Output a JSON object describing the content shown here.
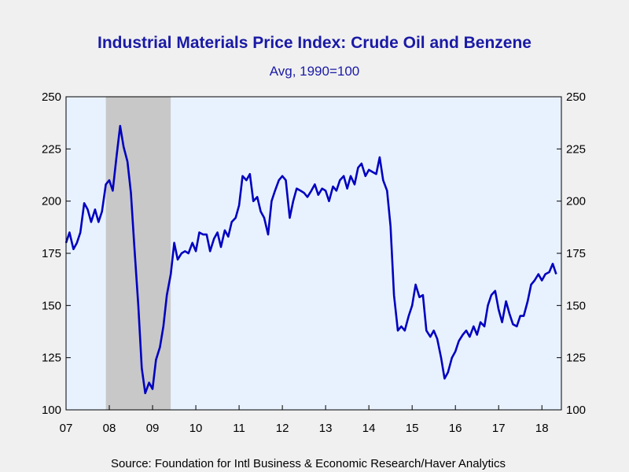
{
  "chart_data": {
    "type": "line",
    "title": "Industrial Materials Price Index: Crude Oil and Benzene",
    "subtitle": "Avg, 1990=100",
    "source": "Source:  Foundation for Intl Business & Economic Research/Haver Analytics",
    "xlabel": "",
    "ylabel": "",
    "x_range": [
      2007.0,
      2018.45
    ],
    "ylim": [
      100,
      250
    ],
    "y_ticks": [
      100,
      125,
      150,
      175,
      200,
      225,
      250
    ],
    "x_ticks": [
      {
        "label": "07",
        "x": 2007.0
      },
      {
        "label": "08",
        "x": 2008.0
      },
      {
        "label": "09",
        "x": 2009.0
      },
      {
        "label": "10",
        "x": 2010.0
      },
      {
        "label": "11",
        "x": 2011.0
      },
      {
        "label": "12",
        "x": 2012.0
      },
      {
        "label": "13",
        "x": 2013.0
      },
      {
        "label": "14",
        "x": 2014.0
      },
      {
        "label": "15",
        "x": 2015.0
      },
      {
        "label": "16",
        "x": 2016.0
      },
      {
        "label": "17",
        "x": 2017.0
      },
      {
        "label": "18",
        "x": 2018.0
      }
    ],
    "recession_shading": [
      {
        "start": 2007.92,
        "end": 2009.42
      }
    ],
    "colors": {
      "line": "#0000c0",
      "plot_background": "#e8f2ff",
      "recession": "#c8c8c8",
      "title": "#1a1aa6",
      "page_background": "#f0f0f0"
    },
    "grid": false,
    "legend": "none",
    "series": [
      {
        "x": [
          2007.0,
          2007.08,
          2007.17,
          2007.25,
          2007.33,
          2007.42,
          2007.5,
          2007.58,
          2007.67,
          2007.75,
          2007.83,
          2007.92,
          2008.0,
          2008.08,
          2008.17,
          2008.25,
          2008.33,
          2008.42,
          2008.5,
          2008.58,
          2008.67,
          2008.75,
          2008.83,
          2008.92,
          2009.0,
          2009.08,
          2009.17,
          2009.25,
          2009.33,
          2009.42,
          2009.5,
          2009.58,
          2009.67,
          2009.75,
          2009.83,
          2009.92,
          2010.0,
          2010.08,
          2010.17,
          2010.25,
          2010.33,
          2010.42,
          2010.5,
          2010.58,
          2010.67,
          2010.75,
          2010.83,
          2010.92,
          2011.0,
          2011.08,
          2011.17,
          2011.25,
          2011.33,
          2011.42,
          2011.5,
          2011.58,
          2011.67,
          2011.75,
          2011.83,
          2011.92,
          2012.0,
          2012.08,
          2012.17,
          2012.25,
          2012.33,
          2012.42,
          2012.5,
          2012.58,
          2012.67,
          2012.75,
          2012.83,
          2012.92,
          2013.0,
          2013.08,
          2013.17,
          2013.25,
          2013.33,
          2013.42,
          2013.5,
          2013.58,
          2013.67,
          2013.75,
          2013.83,
          2013.92,
          2014.0,
          2014.08,
          2014.17,
          2014.25,
          2014.33,
          2014.42,
          2014.5,
          2014.58,
          2014.67,
          2014.75,
          2014.83,
          2014.92,
          2015.0,
          2015.08,
          2015.17,
          2015.25,
          2015.33,
          2015.42,
          2015.5,
          2015.58,
          2015.67,
          2015.75,
          2015.83,
          2015.92,
          2016.0,
          2016.08,
          2016.17,
          2016.25,
          2016.33,
          2016.42,
          2016.5,
          2016.58,
          2016.67,
          2016.75,
          2016.83,
          2016.92,
          2017.0,
          2017.08,
          2017.17,
          2017.25,
          2017.33,
          2017.42,
          2017.5,
          2017.58,
          2017.67,
          2017.75,
          2017.83,
          2017.92,
          2018.0,
          2018.08,
          2018.17,
          2018.25,
          2018.33
        ],
        "values": [
          180,
          185,
          177,
          180,
          185,
          199,
          196,
          190,
          196,
          190,
          195,
          208,
          210,
          205,
          222,
          236,
          226,
          219,
          204,
          178,
          150,
          120,
          108,
          113,
          110,
          124,
          130,
          140,
          155,
          165,
          180,
          172,
          175,
          176,
          175,
          180,
          176,
          185,
          184,
          184,
          176,
          182,
          185,
          178,
          186,
          183,
          190,
          192,
          198,
          212,
          210,
          213,
          200,
          202,
          195,
          192,
          184,
          200,
          205,
          210,
          212,
          210,
          192,
          200,
          206,
          205,
          204,
          202,
          205,
          208,
          203,
          206,
          205,
          200,
          207,
          205,
          210,
          212,
          206,
          212,
          208,
          216,
          218,
          212,
          215,
          214,
          213,
          221,
          210,
          205,
          188,
          155,
          138,
          140,
          138,
          145,
          150,
          160,
          154,
          155,
          138,
          135,
          138,
          134,
          125,
          115,
          118,
          125,
          128,
          133,
          136,
          138,
          135,
          140,
          136,
          142,
          140,
          150,
          155,
          157,
          148,
          142,
          152,
          146,
          141,
          140,
          145,
          145,
          152,
          160,
          162,
          165,
          162,
          165,
          166,
          170,
          165
        ]
      }
    ]
  }
}
